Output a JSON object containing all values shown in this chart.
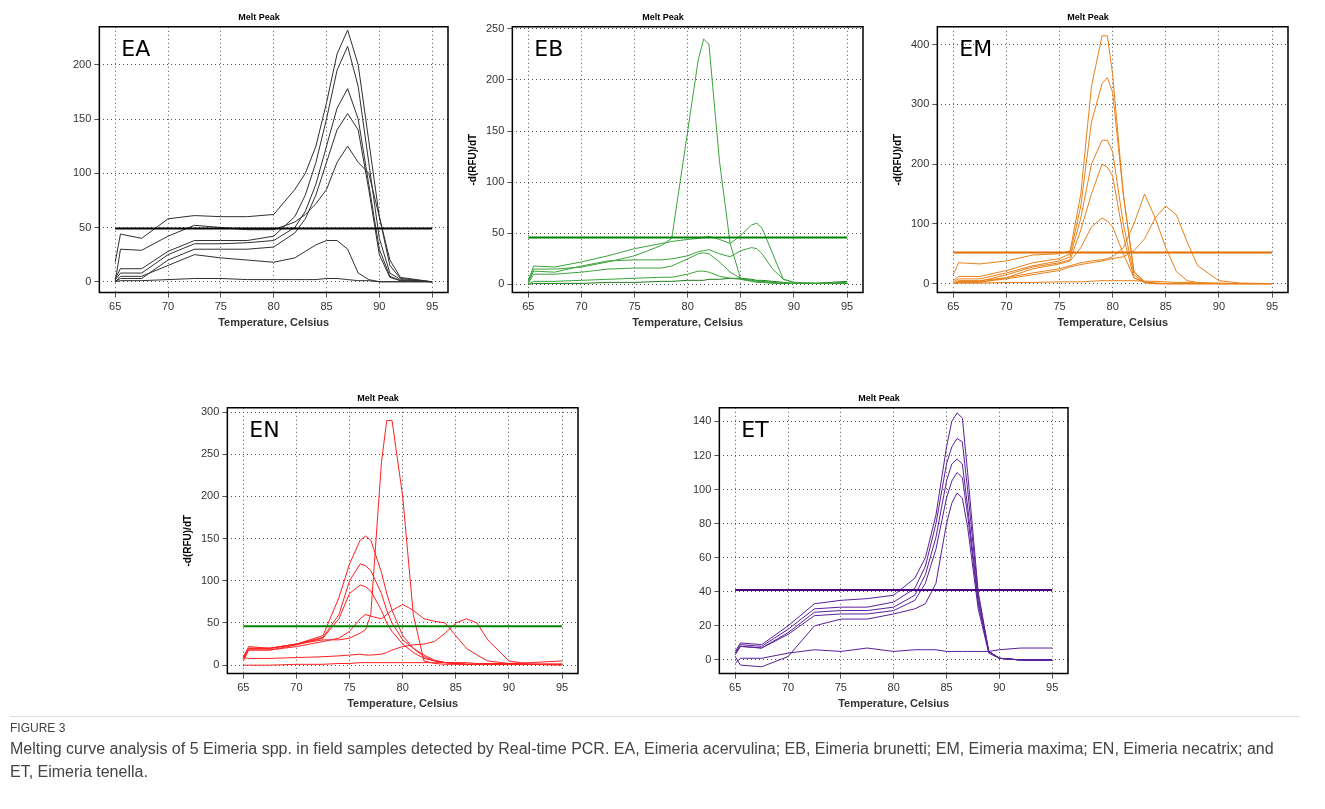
{
  "chart_data": [
    {
      "type": "line",
      "title": "Melt Peak",
      "xlabel": "Temperature, Celsius",
      "annotations": [
        "EA"
      ],
      "xlim": [
        63.5,
        96.5
      ],
      "xticks": [
        65,
        70,
        75,
        80,
        85,
        90,
        95
      ],
      "ylim": [
        -10,
        235
      ],
      "yticks": [
        0,
        50,
        100,
        150,
        200
      ],
      "grid": true,
      "x": [
        65,
        65.5,
        67.5,
        70,
        72.5,
        75,
        77.5,
        80,
        82,
        83,
        84,
        85,
        86,
        87,
        88,
        89,
        90,
        91,
        92,
        95
      ],
      "ref_lines": [
        {
          "axis": "y",
          "value": 49,
          "color": "#000000"
        }
      ],
      "series": [
        {
          "color": "#303030",
          "values": [
            18,
            44,
            40,
            58,
            61,
            60,
            60,
            62,
            85,
            100,
            125,
            165,
            210,
            232,
            200,
            130,
            60,
            15,
            3,
            0
          ]
        },
        {
          "color": "#303030",
          "values": [
            3,
            12,
            12,
            28,
            38,
            38,
            38,
            42,
            60,
            80,
            110,
            150,
            195,
            217,
            180,
            110,
            40,
            8,
            2,
            0
          ]
        },
        {
          "color": "#303030",
          "values": [
            2,
            8,
            8,
            25,
            35,
            35,
            36,
            38,
            50,
            65,
            90,
            125,
            160,
            178,
            150,
            90,
            30,
            5,
            1,
            0
          ]
        },
        {
          "color": "#303030",
          "values": [
            0,
            3,
            3,
            20,
            30,
            30,
            30,
            32,
            45,
            58,
            80,
            110,
            140,
            155,
            140,
            85,
            25,
            4,
            1,
            0
          ]
        },
        {
          "color": "#303030",
          "values": [
            0,
            30,
            29,
            42,
            52,
            50,
            48,
            48,
            55,
            62,
            72,
            85,
            110,
            125,
            110,
            100,
            60,
            20,
            4,
            0
          ]
        },
        {
          "color": "#303030",
          "values": [
            0,
            5,
            5,
            15,
            25,
            22,
            20,
            18,
            22,
            28,
            34,
            38,
            38,
            30,
            8,
            2,
            0,
            0,
            0,
            0
          ]
        },
        {
          "color": "#303030",
          "values": [
            0,
            1,
            1,
            2,
            3,
            3,
            2,
            2,
            2,
            2,
            2,
            3,
            3,
            2,
            1,
            1,
            0,
            0,
            0,
            0
          ]
        }
      ]
    },
    {
      "type": "line",
      "title": "Melt Peak",
      "xlabel": "Temperature, Celsius",
      "ylabel": "-d(RFU)/dT",
      "annotations": [
        "EB"
      ],
      "xlim": [
        63.5,
        96.5
      ],
      "xticks": [
        65,
        70,
        75,
        80,
        85,
        90,
        95
      ],
      "ylim": [
        -8,
        252
      ],
      "yticks": [
        0,
        50,
        100,
        150,
        200,
        250
      ],
      "grid": true,
      "x": [
        65,
        65.5,
        67.5,
        70,
        72.5,
        75,
        77.5,
        78.5,
        80,
        81,
        81.5,
        82,
        83,
        84,
        85,
        86,
        86.5,
        87,
        88,
        89,
        90,
        92,
        95
      ],
      "ref_lines": [
        {
          "axis": "y",
          "value": 46,
          "color": "#008000"
        }
      ],
      "series": [
        {
          "color": "#3aa33a",
          "values": [
            5,
            15,
            15,
            17,
            22,
            28,
            38,
            45,
            150,
            220,
            240,
            235,
            120,
            40,
            5,
            3,
            2,
            2,
            1,
            1,
            1,
            1,
            1
          ]
        },
        {
          "color": "#3aa33a",
          "values": [
            3,
            18,
            17,
            22,
            28,
            35,
            40,
            42,
            44,
            45,
            46,
            47,
            44,
            40,
            48,
            58,
            60,
            55,
            30,
            5,
            2,
            1,
            2
          ]
        },
        {
          "color": "#3aa33a",
          "values": [
            2,
            13,
            12,
            18,
            23,
            24,
            24,
            25,
            28,
            32,
            33,
            34,
            30,
            27,
            33,
            36,
            35,
            30,
            15,
            5,
            2,
            1,
            1
          ]
        },
        {
          "color": "#3aa33a",
          "values": [
            1,
            10,
            10,
            12,
            15,
            16,
            16,
            18,
            25,
            30,
            31,
            30,
            22,
            12,
            6,
            4,
            3,
            3,
            2,
            1,
            1,
            1,
            1
          ]
        },
        {
          "color": "#3aa33a",
          "values": [
            0,
            3,
            3,
            4,
            5,
            6,
            7,
            7,
            10,
            13,
            13,
            12,
            8,
            6,
            5,
            4,
            3,
            3,
            2,
            1,
            1,
            1,
            1
          ]
        },
        {
          "color": "#1f7a1f",
          "values": [
            0,
            1,
            1,
            1,
            2,
            2,
            3,
            3,
            4,
            4,
            4,
            5,
            5,
            6,
            6,
            5,
            4,
            4,
            3,
            2,
            1,
            1,
            3
          ]
        }
      ]
    },
    {
      "type": "line",
      "title": "Melt Peak",
      "xlabel": "Temperature, Celsius",
      "ylabel": "-d(RFU)/dT",
      "annotations": [
        "EM"
      ],
      "xlim": [
        63.5,
        96.5
      ],
      "xticks": [
        65,
        70,
        75,
        80,
        85,
        90,
        95
      ],
      "ylim": [
        -15,
        430
      ],
      "yticks": [
        0,
        100,
        200,
        300,
        400
      ],
      "grid": true,
      "x": [
        65,
        65.5,
        67.5,
        70,
        72.5,
        75,
        76,
        77,
        78,
        79,
        79.5,
        80,
        81,
        82,
        83,
        84,
        85,
        86,
        87,
        88,
        90,
        92,
        95
      ],
      "ref_lines": [
        {
          "axis": "y",
          "value": 52,
          "color": "#e06f00"
        }
      ],
      "series": [
        {
          "color": "#e8801a",
          "values": [
            15,
            35,
            33,
            38,
            48,
            50,
            55,
            150,
            330,
            415,
            415,
            350,
            150,
            20,
            3,
            1,
            0,
            0,
            0,
            0,
            0,
            0,
            0
          ]
        },
        {
          "color": "#e8801a",
          "values": [
            5,
            12,
            12,
            22,
            35,
            42,
            50,
            130,
            270,
            335,
            345,
            320,
            150,
            20,
            3,
            1,
            0,
            0,
            0,
            0,
            0,
            0,
            0
          ]
        },
        {
          "color": "#e8801a",
          "values": [
            3,
            8,
            8,
            18,
            30,
            38,
            45,
            110,
            200,
            240,
            240,
            220,
            100,
            15,
            2,
            0,
            0,
            0,
            0,
            0,
            0,
            0,
            0
          ]
        },
        {
          "color": "#e8801a",
          "values": [
            0,
            4,
            4,
            15,
            28,
            35,
            40,
            90,
            150,
            200,
            195,
            180,
            80,
            10,
            2,
            0,
            0,
            0,
            0,
            0,
            0,
            0,
            0
          ]
        },
        {
          "color": "#e8801a",
          "values": [
            0,
            2,
            2,
            10,
            25,
            33,
            38,
            60,
            95,
            110,
            105,
            95,
            50,
            10,
            2,
            0,
            0,
            0,
            0,
            0,
            0,
            0,
            0
          ]
        },
        {
          "color": "#e8801a",
          "values": [
            0,
            5,
            5,
            10,
            18,
            25,
            30,
            35,
            38,
            40,
            42,
            45,
            60,
            100,
            150,
            110,
            60,
            20,
            5,
            2,
            0,
            0,
            0
          ]
        },
        {
          "color": "#e8801a",
          "values": [
            0,
            3,
            3,
            8,
            15,
            22,
            28,
            32,
            35,
            38,
            40,
            42,
            45,
            55,
            75,
            110,
            130,
            115,
            70,
            30,
            5,
            1,
            0
          ]
        },
        {
          "color": "#e8801a",
          "values": [
            0,
            1,
            1,
            2,
            2,
            3,
            3,
            3,
            4,
            5,
            5,
            5,
            5,
            5,
            4,
            4,
            3,
            2,
            2,
            1,
            1,
            0,
            0
          ]
        }
      ]
    },
    {
      "type": "line",
      "title": "Melt Peak",
      "xlabel": "Temperature, Celsius",
      "ylabel": "-d(RFU)/dT",
      "annotations": [
        "EN"
      ],
      "xlim": [
        63.5,
        96.5
      ],
      "xticks": [
        65,
        70,
        75,
        80,
        85,
        90,
        95
      ],
      "ylim": [
        -10,
        305
      ],
      "yticks": [
        0,
        50,
        100,
        150,
        200,
        250,
        300
      ],
      "grid": true,
      "x": [
        65,
        65.5,
        67.5,
        70,
        72.5,
        74,
        75,
        76,
        76.5,
        77,
        78,
        78.5,
        79,
        80,
        81,
        82,
        83,
        84,
        85,
        86,
        87,
        88,
        90,
        92,
        95
      ],
      "ref_lines": [
        {
          "axis": "y",
          "value": 46,
          "color": "#008000"
        }
      ],
      "series": [
        {
          "color": "#ff2020",
          "values": [
            8,
            22,
            20,
            25,
            30,
            30,
            32,
            38,
            42,
            60,
            240,
            290,
            290,
            200,
            60,
            5,
            2,
            1,
            1,
            1,
            1,
            1,
            1,
            1,
            1
          ]
        },
        {
          "color": "#ff2020",
          "values": [
            10,
            20,
            20,
            25,
            35,
            80,
            120,
            148,
            153,
            148,
            110,
            85,
            65,
            35,
            20,
            10,
            5,
            3,
            2,
            1,
            1,
            1,
            1,
            1,
            1
          ]
        },
        {
          "color": "#ff2020",
          "values": [
            10,
            20,
            20,
            25,
            33,
            60,
            100,
            120,
            118,
            112,
            85,
            65,
            50,
            30,
            20,
            12,
            6,
            3,
            2,
            1,
            1,
            1,
            1,
            1,
            1
          ]
        },
        {
          "color": "#ff2020",
          "values": [
            8,
            18,
            18,
            24,
            32,
            55,
            85,
            95,
            93,
            88,
            65,
            50,
            40,
            25,
            15,
            8,
            5,
            3,
            2,
            1,
            1,
            1,
            1,
            1,
            1
          ]
        },
        {
          "color": "#ff2020",
          "values": [
            5,
            18,
            18,
            22,
            28,
            32,
            40,
            55,
            60,
            58,
            55,
            60,
            65,
            72,
            65,
            55,
            52,
            50,
            35,
            20,
            12,
            5,
            2,
            1,
            1
          ]
        },
        {
          "color": "#ff2020",
          "values": [
            9,
            8,
            8,
            9,
            10,
            11,
            12,
            13,
            12,
            12,
            13,
            15,
            18,
            22,
            24,
            25,
            28,
            38,
            50,
            55,
            50,
            30,
            5,
            1,
            0
          ]
        },
        {
          "color": "#ff2020",
          "values": [
            0,
            0,
            0,
            1,
            1,
            2,
            2,
            3,
            3,
            3,
            3,
            3,
            3,
            3,
            3,
            3,
            3,
            3,
            3,
            3,
            2,
            2,
            2,
            3,
            5
          ]
        }
      ]
    },
    {
      "type": "line",
      "title": "Melt Peak",
      "xlabel": "Temperature, Celsius",
      "annotations": [
        "ET"
      ],
      "xlim": [
        63.5,
        96.5
      ],
      "xticks": [
        65,
        70,
        75,
        80,
        85,
        90,
        95
      ],
      "ylim": [
        -8,
        148
      ],
      "yticks": [
        0,
        20,
        40,
        60,
        80,
        100,
        120,
        140
      ],
      "grid": true,
      "x": [
        65,
        65.5,
        67.5,
        70,
        72.5,
        75,
        77.5,
        80,
        82,
        83,
        84,
        85,
        85.5,
        86,
        86.5,
        87,
        88,
        89,
        90,
        92,
        95
      ],
      "ref_lines": [
        {
          "axis": "y",
          "value": 41,
          "color": "#4b0082"
        }
      ],
      "series": [
        {
          "color": "#5a1f9a",
          "values": [
            5,
            10,
            9,
            20,
            33,
            35,
            36,
            38,
            48,
            60,
            85,
            125,
            140,
            145,
            142,
            110,
            40,
            5,
            1,
            0,
            0
          ]
        },
        {
          "color": "#5a1f9a",
          "values": [
            4,
            9,
            8,
            18,
            30,
            31,
            31,
            34,
            42,
            55,
            80,
            115,
            125,
            130,
            128,
            100,
            38,
            5,
            1,
            0,
            0
          ]
        },
        {
          "color": "#5a1f9a",
          "values": [
            4,
            8,
            7,
            16,
            28,
            29,
            29,
            31,
            38,
            50,
            72,
            105,
            115,
            118,
            115,
            90,
            35,
            5,
            1,
            0,
            0
          ]
        },
        {
          "color": "#5a1f9a",
          "values": [
            3,
            8,
            7,
            15,
            26,
            27,
            27,
            29,
            35,
            45,
            65,
            95,
            105,
            110,
            107,
            85,
            33,
            5,
            1,
            0,
            0
          ]
        },
        {
          "color": "#5a1f9a",
          "values": [
            2,
            -3,
            -4,
            2,
            20,
            24,
            24,
            27,
            30,
            33,
            45,
            80,
            92,
            98,
            95,
            78,
            30,
            4,
            1,
            0,
            0
          ]
        },
        {
          "color": "#5a1f9a",
          "values": [
            -2,
            1,
            1,
            4,
            6,
            5,
            7,
            5,
            6,
            6,
            6,
            5,
            5,
            5,
            5,
            5,
            5,
            5,
            6,
            7,
            7
          ]
        }
      ]
    },
    {
      "type": "other",
      "title": "FIGURE 3",
      "annotations": [
        "Melting curve analysis of 5 Eimeria spp. in field samples detected by Real-time PCR. EA, Eimeria acervulina; EB, Eimeria brunetti; EM, Eimeria maxima; EN, Eimeria necatrix; and ET, Eimeria tenella."
      ]
    }
  ]
}
